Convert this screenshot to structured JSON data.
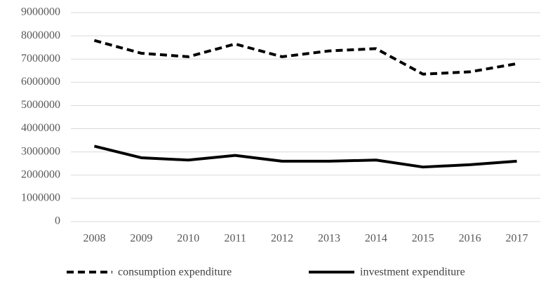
{
  "chart_data": {
    "type": "line",
    "categories": [
      "2008",
      "2009",
      "2010",
      "2011",
      "2012",
      "2013",
      "2014",
      "2015",
      "2016",
      "2017"
    ],
    "series": [
      {
        "name": "consumption expenditure",
        "color": "#000000",
        "dash": true,
        "values": [
          7800000,
          7250000,
          7100000,
          7650000,
          7100000,
          7350000,
          7450000,
          6350000,
          6450000,
          6800000
        ]
      },
      {
        "name": "investment expenditure",
        "color": "#000000",
        "dash": false,
        "values": [
          3250000,
          2750000,
          2650000,
          2850000,
          2600000,
          2600000,
          2650000,
          2350000,
          2450000,
          2600000
        ]
      }
    ],
    "ylim": [
      0,
      9000000
    ],
    "yticks": [
      0,
      1000000,
      2000000,
      3000000,
      4000000,
      5000000,
      6000000,
      7000000,
      8000000,
      9000000
    ],
    "grid": true,
    "legend": "bottom"
  }
}
